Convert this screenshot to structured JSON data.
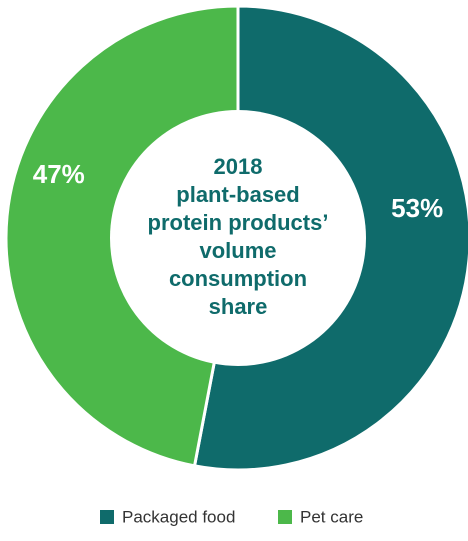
{
  "chart_data": {
    "type": "pie",
    "variant": "donut",
    "title_lines": [
      "2018",
      "plant-based",
      "protein products’",
      "volume",
      "consumption",
      "share"
    ],
    "categories": [
      "Packaged food",
      "Pet care"
    ],
    "values": [
      53,
      47
    ],
    "value_labels": [
      "53%",
      "47%"
    ],
    "colors": [
      "#0f6b6b",
      "#4cb84a"
    ],
    "title_color": "#0f6b6b",
    "legend_position": "bottom-center"
  }
}
